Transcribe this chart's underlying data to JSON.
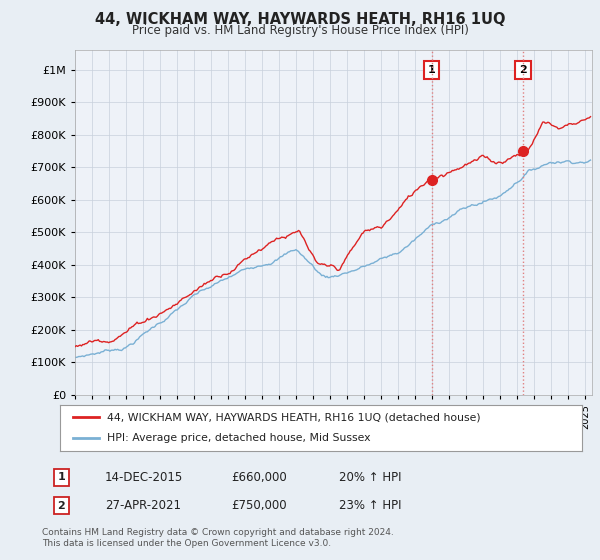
{
  "title": "44, WICKHAM WAY, HAYWARDS HEATH, RH16 1UQ",
  "subtitle": "Price paid vs. HM Land Registry's House Price Index (HPI)",
  "ytick_values": [
    0,
    100000,
    200000,
    300000,
    400000,
    500000,
    600000,
    700000,
    800000,
    900000,
    1000000
  ],
  "ylim": [
    0,
    1060000
  ],
  "xlim_start": 1995.0,
  "xlim_end": 2025.4,
  "price_paid_color": "#dd2222",
  "hpi_color": "#7ab0d4",
  "marker1_date": 2015.96,
  "marker1_price": 660000,
  "marker2_date": 2021.32,
  "marker2_price": 750000,
  "legend_line1": "44, WICKHAM WAY, HAYWARDS HEATH, RH16 1UQ (detached house)",
  "legend_line2": "HPI: Average price, detached house, Mid Sussex",
  "footnote": "Contains HM Land Registry data © Crown copyright and database right 2024.\nThis data is licensed under the Open Government Licence v3.0.",
  "bg_color": "#e8eef4",
  "plot_bg_color": "#eef2f8",
  "grid_color": "#c8d0dc"
}
